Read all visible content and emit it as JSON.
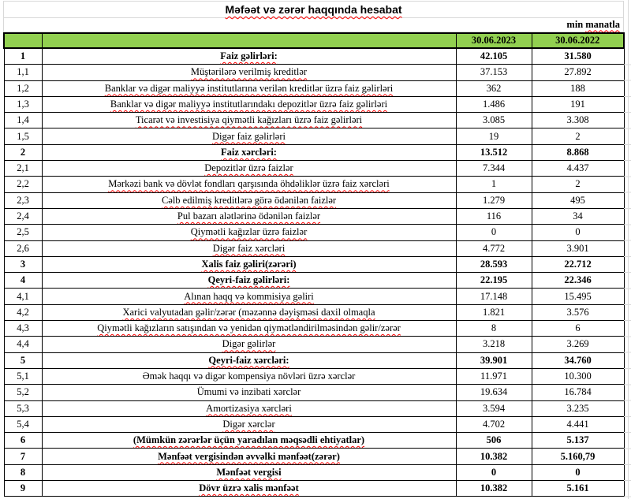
{
  "title": "Məfəət və zərər haqqında hesabat",
  "unit": {
    "prefix": "min",
    "word": "manatla"
  },
  "colors": {
    "header_green": "#92D050",
    "border_black": "#000000",
    "gridline_gray": "#D9D9D9",
    "squiggle_red": "#FF0000"
  },
  "table": {
    "columns": [
      "30.06.2023",
      "30.06.2022"
    ],
    "rows": [
      {
        "no": "1",
        "label": "Faiz gəlirləri:",
        "v2023": "42.105",
        "v2022": "31.580",
        "bold": true,
        "wavy": true
      },
      {
        "no": "1,1",
        "label": "Müştərilərə verilmiş kreditlər",
        "v2023": "37.153",
        "v2022": "27.892",
        "bold": false,
        "wavy": true
      },
      {
        "no": "1,2",
        "label": "Banklar və digər maliyyə institutlarına verilən kreditlər üzrə faiz gəlirləri",
        "v2023": "362",
        "v2022": "188",
        "bold": false,
        "wavy": true
      },
      {
        "no": "1,3",
        "label": "Banklar və digər maliyyə institutlarındakı depozitlər üzrə faiz gəlirləri",
        "v2023": "1.486",
        "v2022": "191",
        "bold": false,
        "wavy": true
      },
      {
        "no": "1,4",
        "label": "Ticarət və investisiya qiymətli kağızları üzrə faiz gəlirləri",
        "v2023": "3.085",
        "v2022": "3.308",
        "bold": false,
        "wavy": true
      },
      {
        "no": "1,5",
        "label": "Digər faiz gəlirləri",
        "v2023": "19",
        "v2022": "2",
        "bold": false,
        "wavy": true
      },
      {
        "no": "2",
        "label": "Faiz xərcləri:",
        "v2023": "13.512",
        "v2022": "8.868",
        "bold": true,
        "wavy": true
      },
      {
        "no": "2,1",
        "label": "Depozitlər üzrə faizlər",
        "v2023": "7.344",
        "v2022": "4.437",
        "bold": false,
        "wavy": true
      },
      {
        "no": "2,2",
        "label": "Mərkəzi bank və dövlət fondları qarşısında öhdəliklər üzrə faiz xərcləri",
        "v2023": "1",
        "v2022": "2",
        "bold": false,
        "wavy": true
      },
      {
        "no": "2,3",
        "label": "Cəlb edilmiş kreditlərə görə ödənilən faizlər",
        "v2023": "1.279",
        "v2022": "495",
        "bold": false,
        "wavy": true
      },
      {
        "no": "2,4",
        "label": "Pul bazarı alətlərinə ödənilən faizlər",
        "v2023": "116",
        "v2022": "34",
        "bold": false,
        "wavy": true
      },
      {
        "no": "2,5",
        "label": "Qiymətli kağızlar üzrə faizlər",
        "v2023": "0",
        "v2022": "0",
        "bold": false,
        "wavy": true
      },
      {
        "no": "2,6",
        "label": "Digər faiz xərcləri",
        "v2023": "4.772",
        "v2022": "3.901",
        "bold": false,
        "wavy": true
      },
      {
        "no": "3",
        "label": "Xalis faiz gəliri(zərəri)",
        "v2023": "28.593",
        "v2022": "22.712",
        "bold": true,
        "wavy": true
      },
      {
        "no": "4",
        "label": "Qeyri-faiz gəlirləri:",
        "v2023": "22.195",
        "v2022": "22.346",
        "bold": true,
        "wavy": true
      },
      {
        "no": "4,1",
        "label": "Alınan haqq və kommisiya gəliri",
        "v2023": "17.148",
        "v2022": "15.495",
        "bold": false,
        "wavy": true
      },
      {
        "no": "4,2",
        "label": "Xarici valyutadan gəlir/zərər (məzənnə dəyişməsi daxil olmaqla",
        "v2023": "1.821",
        "v2022": "3.576",
        "bold": false,
        "wavy": true
      },
      {
        "no": "4,3",
        "label": "Qiymətli kağızların satışından və yenidən qiymətləndirilməsindən gəlir/zərər",
        "v2023": "8",
        "v2022": "6",
        "bold": false,
        "wavy": true
      },
      {
        "no": "4,4",
        "label": "Digər gəlirlər",
        "v2023": "3.218",
        "v2022": "3.269",
        "bold": false,
        "wavy": true
      },
      {
        "no": "5",
        "label": "Qeyri-faiz xərcləri:",
        "v2023": "39.901",
        "v2022": "34.760",
        "bold": true,
        "wavy": true
      },
      {
        "no": "5,1",
        "label": "Əmək haqqı və digər kompensiya növləri üzrə xərclər",
        "v2023": "11.971",
        "v2022": "10.300",
        "bold": false,
        "wavy": false
      },
      {
        "no": "5,2",
        "label": "Ümumi və inzibati xərclər",
        "v2023": "19.634",
        "v2022": "16.784",
        "bold": false,
        "wavy": false
      },
      {
        "no": "5,3",
        "label": "Amortizasiya xərcləri",
        "v2023": "3.594",
        "v2022": "3.235",
        "bold": false,
        "wavy": true
      },
      {
        "no": "5,4",
        "label": "Digər xərclər",
        "v2023": "4.702",
        "v2022": "4.441",
        "bold": false,
        "wavy": true
      },
      {
        "no": "6",
        "label": "(Mümkün zərərlər üçün yaradılan məqsədli ehtiyatlar)",
        "v2023": "506",
        "v2022": "5.137",
        "bold": true,
        "wavy": true
      },
      {
        "no": "7",
        "label": "Mənfəət vergisindən əvvəlki mənfəət(zərər)",
        "v2023": "10.382",
        "v2022": "5.160,79",
        "bold": true,
        "wavy": true
      },
      {
        "no": "8",
        "label": "Mənfəət vergisi",
        "v2023": "0",
        "v2022": "0",
        "bold": true,
        "wavy": true
      },
      {
        "no": "9",
        "label": "Dövr üzrə xalis mənfəət",
        "v2023": "10.382",
        "v2022": "5.161",
        "bold": true,
        "wavy": true
      }
    ]
  }
}
